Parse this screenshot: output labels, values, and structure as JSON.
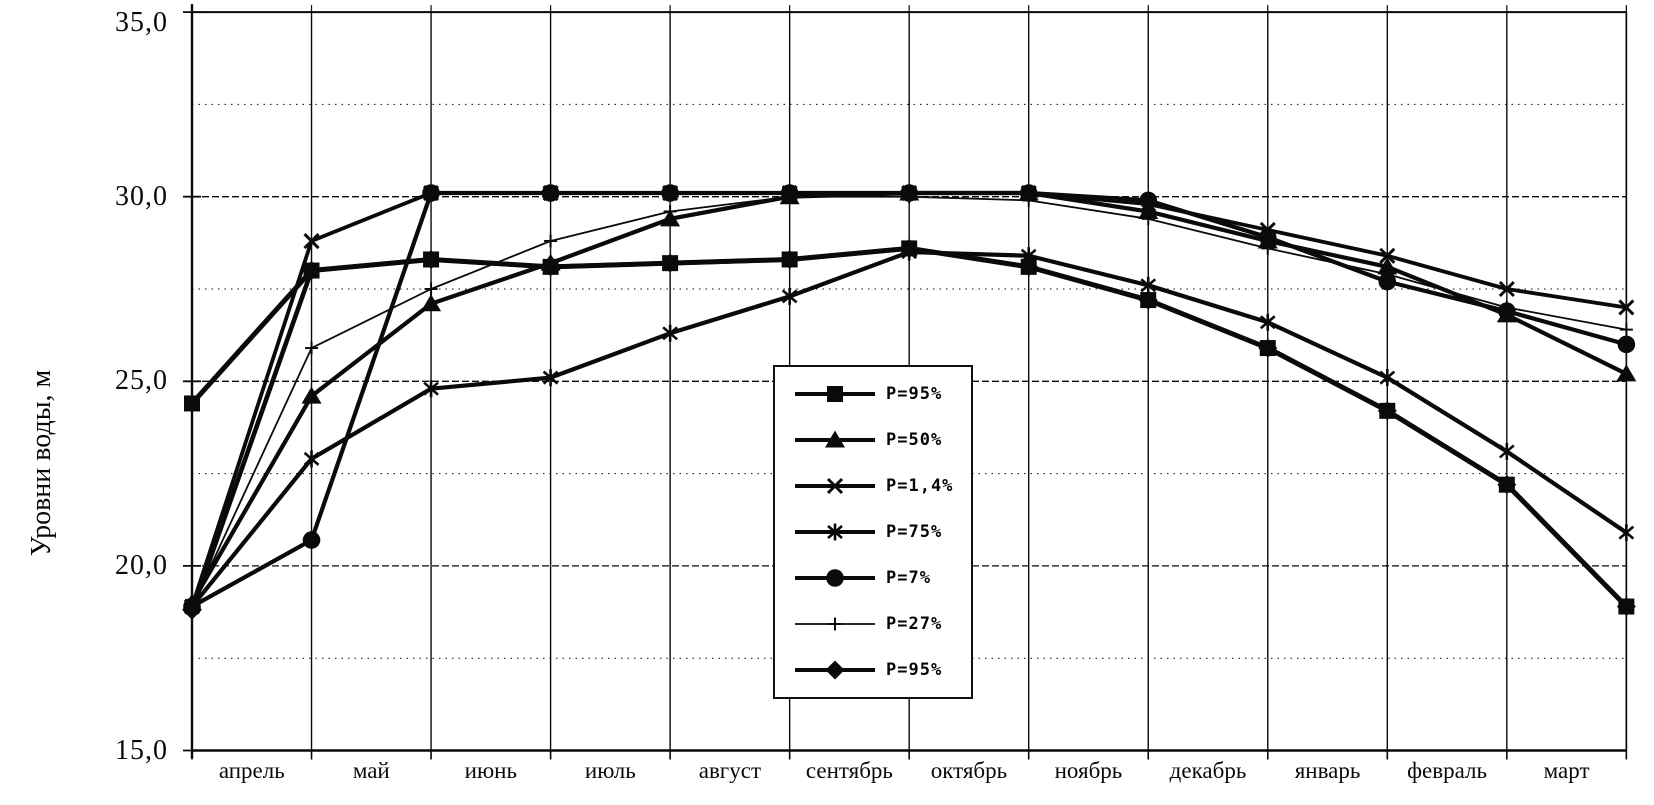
{
  "page": {
    "background": "#ffffff",
    "ink": "#0a0a0a"
  },
  "y_axis": {
    "title": "Уровни воды, м",
    "tick_labels": [
      "35,0",
      "30,0",
      "25,0",
      "20,0",
      "15,0"
    ],
    "tick_values": [
      35,
      30,
      25,
      20,
      15
    ],
    "range": [
      15,
      35
    ]
  },
  "x_axis": {
    "month_labels": [
      "апрель",
      "май",
      "июнь",
      "июль",
      "август",
      "сентябрь",
      "октябрь",
      "ноябрь",
      "декабрь",
      "январь",
      "февраль",
      "март"
    ]
  },
  "legend": {
    "entries": [
      "P=95%",
      "P=50%",
      "P=1,4%",
      "P=75%",
      "P=7%",
      "P=27%",
      "P=95%"
    ]
  },
  "chart_data": {
    "type": "line",
    "title": "",
    "ylabel": "Уровни воды, м",
    "ylim": [
      15,
      35
    ],
    "yticks": [
      15,
      20,
      25,
      30,
      35
    ],
    "grid": true,
    "legend_position": "center",
    "categories": [
      "апрель",
      "май",
      "июнь",
      "июль",
      "август",
      "сентябрь",
      "октябрь",
      "ноябрь",
      "декабрь",
      "январь",
      "февраль",
      "март"
    ],
    "x_note": "13 точек на линиях сетки: границы месяцев апрель–март плюс правая граница (конец марта); подписи месяцев стоят между линиями сетки",
    "series": [
      {
        "name": "P=95%",
        "marker": "square",
        "line": "thick",
        "values": [
          24.4,
          28.0,
          28.3,
          28.1,
          28.2,
          28.3,
          28.6,
          28.1,
          27.2,
          25.9,
          24.2,
          22.2,
          18.9
        ]
      },
      {
        "name": "P=50%",
        "marker": "triangle",
        "line": "thick",
        "values": [
          19.0,
          24.6,
          27.1,
          28.2,
          29.4,
          30.0,
          30.1,
          30.1,
          29.6,
          28.8,
          28.1,
          26.8,
          25.2
        ]
      },
      {
        "name": "P=1,4%",
        "marker": "x",
        "line": "thick",
        "values": [
          18.9,
          28.8,
          30.1,
          30.1,
          30.1,
          30.1,
          30.1,
          30.1,
          29.8,
          29.1,
          28.4,
          27.5,
          27.0
        ]
      },
      {
        "name": "P=75%",
        "marker": "star6",
        "line": "thick",
        "values": [
          18.9,
          22.9,
          24.8,
          25.1,
          26.3,
          27.3,
          28.5,
          28.4,
          27.6,
          26.6,
          25.1,
          23.1,
          20.9
        ]
      },
      {
        "name": "P=7%",
        "marker": "circle",
        "line": "thick",
        "values": [
          18.9,
          20.7,
          30.1,
          30.1,
          30.1,
          30.1,
          30.1,
          30.1,
          29.9,
          28.9,
          27.7,
          26.9,
          26.0
        ]
      },
      {
        "name": "P=27%",
        "marker": "plus",
        "line": "thin",
        "values": [
          18.9,
          25.9,
          27.5,
          28.8,
          29.6,
          30.0,
          30.0,
          29.9,
          29.4,
          28.6,
          27.9,
          27.0,
          26.4
        ]
      },
      {
        "name": "P=95%",
        "marker": "diamond",
        "line": "thick",
        "values": [
          18.8,
          28.0,
          28.3,
          28.1,
          28.2,
          28.3,
          28.6,
          28.1,
          27.2,
          25.9,
          24.2,
          22.2,
          18.9
        ]
      }
    ]
  }
}
